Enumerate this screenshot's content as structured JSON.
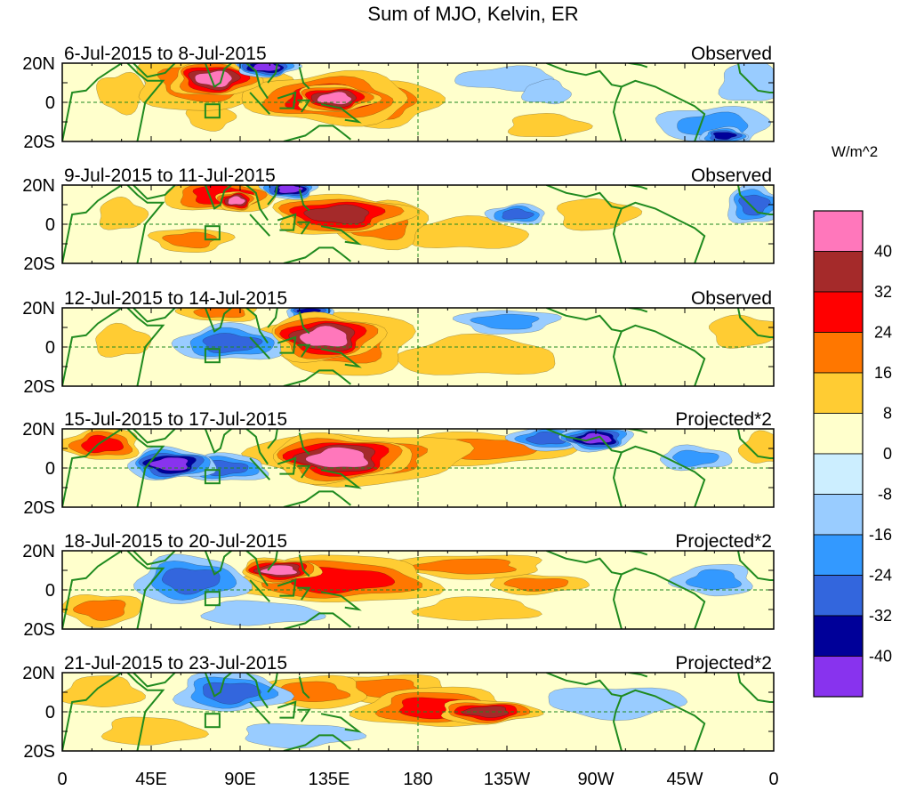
{
  "title": "Sum of MJO, Kelvin, ER",
  "chart_data": {
    "type": "heatmap",
    "title": "Sum of MJO, Kelvin, ER",
    "units_label": "W/m^2",
    "x_ticks": [
      "0",
      "45E",
      "90E",
      "135E",
      "180",
      "135W",
      "90W",
      "45W",
      "0"
    ],
    "x_range_deg": [
      0,
      360
    ],
    "y_ticks": [
      "20N",
      "0",
      "20S"
    ],
    "y_range_deg": [
      -20,
      20
    ],
    "levels": [
      -40,
      -32,
      -24,
      -16,
      -8,
      0,
      8,
      16,
      24,
      32,
      40
    ],
    "colorbar_labels": [
      "40",
      "32",
      "24",
      "16",
      "8",
      "0",
      "-8",
      "-16",
      "-24",
      "-32",
      "-40"
    ],
    "colors_top_to_bottom": [
      "#ff77bb",
      "#a52a2a",
      "#ff0000",
      "#ff7700",
      "#ffcc33",
      "#ffffcc",
      "#cceeff",
      "#99ccff",
      "#3399ff",
      "#3366dd",
      "#000099",
      "#8833ee"
    ],
    "panels": [
      {
        "period": "6-Jul-2015 to 8-Jul-2015",
        "status": "Observed",
        "anomalies": [
          {
            "lon": 77,
            "lat": 12,
            "w": 22,
            "h": 9,
            "v": 40
          },
          {
            "lon": 73,
            "lat": 10,
            "w": 38,
            "h": 14,
            "v": 20
          },
          {
            "lon": 103,
            "lat": 18,
            "w": 16,
            "h": 5,
            "v": -45
          },
          {
            "lon": 135,
            "lat": 2,
            "w": 42,
            "h": 13,
            "v": 30
          },
          {
            "lon": 138,
            "lat": 2,
            "w": 20,
            "h": 7,
            "v": 42
          },
          {
            "lon": 160,
            "lat": 0,
            "w": 30,
            "h": 12,
            "v": 22
          },
          {
            "lon": 30,
            "lat": 5,
            "w": 12,
            "h": 10,
            "v": 12
          },
          {
            "lon": 55,
            "lat": 7,
            "w": 14,
            "h": 8,
            "v": -10
          },
          {
            "lon": 75,
            "lat": -8,
            "w": 12,
            "h": 6,
            "v": 10
          },
          {
            "lon": 225,
            "lat": 12,
            "w": 25,
            "h": 6,
            "v": -14
          },
          {
            "lon": 245,
            "lat": 5,
            "w": 12,
            "h": 6,
            "v": -14
          },
          {
            "lon": 330,
            "lat": -12,
            "w": 28,
            "h": 10,
            "v": -22
          },
          {
            "lon": 335,
            "lat": -17,
            "w": 12,
            "h": 4,
            "v": -36
          },
          {
            "lon": 350,
            "lat": 10,
            "w": 18,
            "h": 10,
            "v": -15
          },
          {
            "lon": 205,
            "lat": -5,
            "w": 28,
            "h": 8,
            "v": 6
          },
          {
            "lon": 245,
            "lat": -12,
            "w": 20,
            "h": 6,
            "v": 8
          }
        ]
      },
      {
        "period": "9-Jul-2015 to 11-Jul-2015",
        "status": "Observed",
        "anomalies": [
          {
            "lon": 80,
            "lat": 15,
            "w": 28,
            "h": 9,
            "v": 28
          },
          {
            "lon": 88,
            "lat": 12,
            "w": 10,
            "h": 5,
            "v": 40
          },
          {
            "lon": 115,
            "lat": 18,
            "w": 14,
            "h": 5,
            "v": -45
          },
          {
            "lon": 140,
            "lat": 5,
            "w": 35,
            "h": 10,
            "v": 32
          },
          {
            "lon": 160,
            "lat": 0,
            "w": 25,
            "h": 12,
            "v": 20
          },
          {
            "lon": 65,
            "lat": -8,
            "w": 20,
            "h": 6,
            "v": 16
          },
          {
            "lon": 30,
            "lat": 5,
            "w": 12,
            "h": 8,
            "v": 12
          },
          {
            "lon": 230,
            "lat": 5,
            "w": 15,
            "h": 5,
            "v": -25
          },
          {
            "lon": 270,
            "lat": 5,
            "w": 20,
            "h": 8,
            "v": 12
          },
          {
            "lon": 350,
            "lat": 10,
            "w": 14,
            "h": 10,
            "v": -30
          },
          {
            "lon": 205,
            "lat": -5,
            "w": 30,
            "h": 8,
            "v": 8
          }
        ]
      },
      {
        "period": "12-Jul-2015 to 14-Jul-2015",
        "status": "Observed",
        "anomalies": [
          {
            "lon": 133,
            "lat": 5,
            "w": 28,
            "h": 12,
            "v": 42
          },
          {
            "lon": 140,
            "lat": 2,
            "w": 38,
            "h": 16,
            "v": 20
          },
          {
            "lon": 85,
            "lat": 2,
            "w": 28,
            "h": 9,
            "v": -30
          },
          {
            "lon": 125,
            "lat": 18,
            "w": 12,
            "h": 4,
            "v": -36
          },
          {
            "lon": 80,
            "lat": 18,
            "w": 20,
            "h": 5,
            "v": 20
          },
          {
            "lon": 225,
            "lat": 13,
            "w": 25,
            "h": 6,
            "v": -18
          },
          {
            "lon": 210,
            "lat": -5,
            "w": 40,
            "h": 10,
            "v": 8
          },
          {
            "lon": 30,
            "lat": 3,
            "w": 14,
            "h": 8,
            "v": 10
          },
          {
            "lon": 345,
            "lat": 8,
            "w": 18,
            "h": 8,
            "v": 12
          }
        ]
      },
      {
        "period": "15-Jul-2015 to 17-Jul-2015",
        "status": "Projected*2",
        "anomalies": [
          {
            "lon": 20,
            "lat": 12,
            "w": 20,
            "h": 8,
            "v": 28
          },
          {
            "lon": 55,
            "lat": 2,
            "w": 22,
            "h": 8,
            "v": -40
          },
          {
            "lon": 82,
            "lat": 0,
            "w": 22,
            "h": 7,
            "v": -30
          },
          {
            "lon": 140,
            "lat": 5,
            "w": 35,
            "h": 12,
            "v": 42
          },
          {
            "lon": 150,
            "lat": 5,
            "w": 55,
            "h": 13,
            "v": 22
          },
          {
            "lon": 215,
            "lat": 10,
            "w": 45,
            "h": 8,
            "v": 18
          },
          {
            "lon": 245,
            "lat": 15,
            "w": 18,
            "h": 6,
            "v": -24
          },
          {
            "lon": 270,
            "lat": 15,
            "w": 18,
            "h": 6,
            "v": -42
          },
          {
            "lon": 320,
            "lat": 5,
            "w": 18,
            "h": 6,
            "v": -16
          },
          {
            "lon": 355,
            "lat": 10,
            "w": 12,
            "h": 8,
            "v": 12
          }
        ]
      },
      {
        "period": "18-Jul-2015 to 20-Jul-2015",
        "status": "Projected*2",
        "anomalies": [
          {
            "lon": 65,
            "lat": 5,
            "w": 28,
            "h": 12,
            "v": -30
          },
          {
            "lon": 110,
            "lat": 10,
            "w": 20,
            "h": 6,
            "v": 40
          },
          {
            "lon": 140,
            "lat": 5,
            "w": 50,
            "h": 12,
            "v": 24
          },
          {
            "lon": 205,
            "lat": 12,
            "w": 40,
            "h": 6,
            "v": 18
          },
          {
            "lon": 240,
            "lat": 3,
            "w": 25,
            "h": 5,
            "v": 16
          },
          {
            "lon": 20,
            "lat": -10,
            "w": 20,
            "h": 8,
            "v": 16
          },
          {
            "lon": 210,
            "lat": -10,
            "w": 30,
            "h": 6,
            "v": 10
          },
          {
            "lon": 330,
            "lat": 5,
            "w": 20,
            "h": 8,
            "v": -20
          },
          {
            "lon": 100,
            "lat": -12,
            "w": 30,
            "h": 6,
            "v": -10
          }
        ]
      },
      {
        "period": "21-Jul-2015 to 23-Jul-2015",
        "status": "Projected*2",
        "anomalies": [
          {
            "lon": 85,
            "lat": 10,
            "w": 28,
            "h": 10,
            "v": -30
          },
          {
            "lon": 125,
            "lat": 10,
            "w": 30,
            "h": 8,
            "v": 20
          },
          {
            "lon": 190,
            "lat": 2,
            "w": 40,
            "h": 10,
            "v": 24
          },
          {
            "lon": 215,
            "lat": 0,
            "w": 25,
            "h": 6,
            "v": 34
          },
          {
            "lon": 160,
            "lat": 12,
            "w": 35,
            "h": 7,
            "v": 16
          },
          {
            "lon": 20,
            "lat": 10,
            "w": 20,
            "h": 8,
            "v": 10
          },
          {
            "lon": 45,
            "lat": -10,
            "w": 25,
            "h": 7,
            "v": 10
          },
          {
            "lon": 280,
            "lat": 5,
            "w": 35,
            "h": 8,
            "v": -14
          },
          {
            "lon": 120,
            "lat": -12,
            "w": 30,
            "h": 6,
            "v": -12
          }
        ]
      }
    ]
  }
}
